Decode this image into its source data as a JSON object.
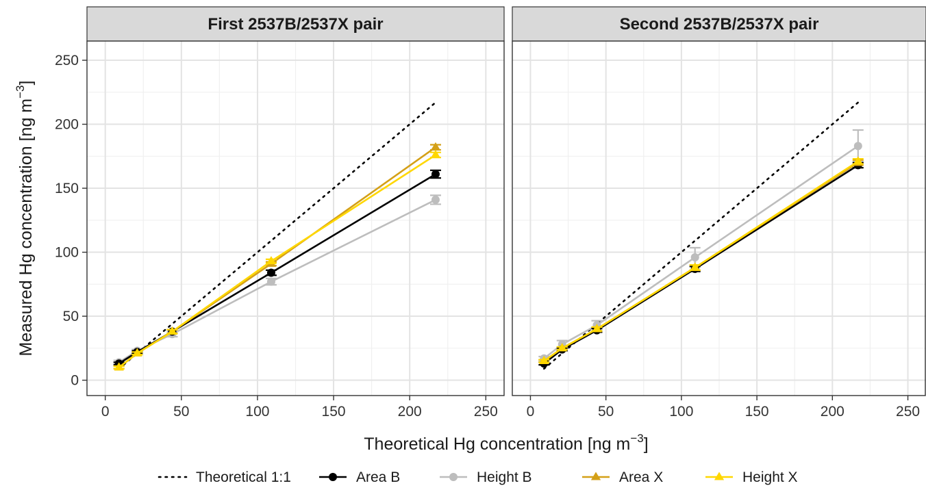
{
  "chart_data": {
    "type": "line",
    "xlabel": "Theoretical Hg concentration [ng m",
    "xlabel_sup": "−3",
    "xlabel_end": "]",
    "ylabel": "Measured Hg concentration [ng m",
    "ylabel_sup": "−3",
    "ylabel_end": "]",
    "xlim": [
      -12,
      262
    ],
    "ylim": [
      -12,
      265
    ],
    "x_ticks": [
      0,
      50,
      100,
      150,
      200,
      250
    ],
    "y_ticks": [
      0,
      50,
      100,
      150,
      200,
      250
    ],
    "grid": true,
    "legend_position": "bottom",
    "legend": [
      {
        "key": "theoretical",
        "label": "Theoretical 1:1",
        "color": "#000000",
        "style": "dotted",
        "marker": "none"
      },
      {
        "key": "area_b",
        "label": "Area B",
        "color": "#000000",
        "style": "solid",
        "marker": "circle"
      },
      {
        "key": "height_b",
        "label": "Height B",
        "color": "#bdbdbd",
        "style": "solid",
        "marker": "circle"
      },
      {
        "key": "area_x",
        "label": "Area X",
        "color": "#d4a017",
        "style": "solid",
        "marker": "triangle"
      },
      {
        "key": "height_x",
        "label": "Height X",
        "color": "#ffd700",
        "style": "solid",
        "marker": "triangle"
      }
    ],
    "panels": [
      {
        "title": "First 2537B/2537X pair",
        "series": [
          {
            "key": "theoretical",
            "x": [
              9,
              217
            ],
            "y": [
              9,
              217
            ]
          },
          {
            "key": "height_b",
            "x": [
              9,
              21,
              44,
              109,
              217
            ],
            "y": [
              14,
              23,
              36,
              77,
              141
            ],
            "err": [
              1.5,
              1,
              2,
              2.5,
              3.5
            ]
          },
          {
            "key": "area_b",
            "x": [
              9,
              21,
              44,
              109,
              217
            ],
            "y": [
              13,
              22,
              38,
              84,
              161
            ],
            "err": [
              1,
              1,
              1.5,
              2,
              3
            ]
          },
          {
            "key": "area_x",
            "x": [
              9,
              21,
              44,
              109,
              217
            ],
            "y": [
              10,
              21,
              38,
              91,
              182
            ],
            "err": [
              1,
              1,
              1.5,
              1.5,
              2
            ]
          },
          {
            "key": "height_x",
            "x": [
              9,
              21,
              44,
              109,
              217
            ],
            "y": [
              10,
              21,
              38,
              93,
              176
            ],
            "err": [
              1,
              1,
              1.5,
              1.5,
              2
            ]
          }
        ]
      },
      {
        "title": "Second 2537B/2537X pair",
        "series": [
          {
            "key": "theoretical",
            "x": [
              9,
              217
            ],
            "y": [
              9,
              217
            ]
          },
          {
            "key": "height_b",
            "x": [
              9,
              21,
              44,
              109,
              217
            ],
            "y": [
              17,
              28,
              43,
              96,
              183
            ],
            "err": [
              1.5,
              3,
              3.5,
              7.5,
              12.5
            ]
          },
          {
            "key": "area_b",
            "x": [
              9,
              21,
              44,
              109,
              217
            ],
            "y": [
              13,
              24,
              39,
              87,
              168
            ],
            "err": [
              1,
              1,
              1.5,
              2,
              2
            ]
          },
          {
            "key": "area_x",
            "x": [
              9,
              21,
              44,
              109,
              217
            ],
            "y": [
              15,
              25,
              40,
              88,
              170
            ],
            "err": [
              1,
              1,
              1.5,
              2,
              2
            ]
          },
          {
            "key": "height_x",
            "x": [
              9,
              21,
              44,
              109,
              217
            ],
            "y": [
              15,
              25,
              40,
              88,
              171
            ],
            "err": [
              1,
              1,
              1.5,
              2,
              2
            ]
          }
        ]
      }
    ]
  }
}
